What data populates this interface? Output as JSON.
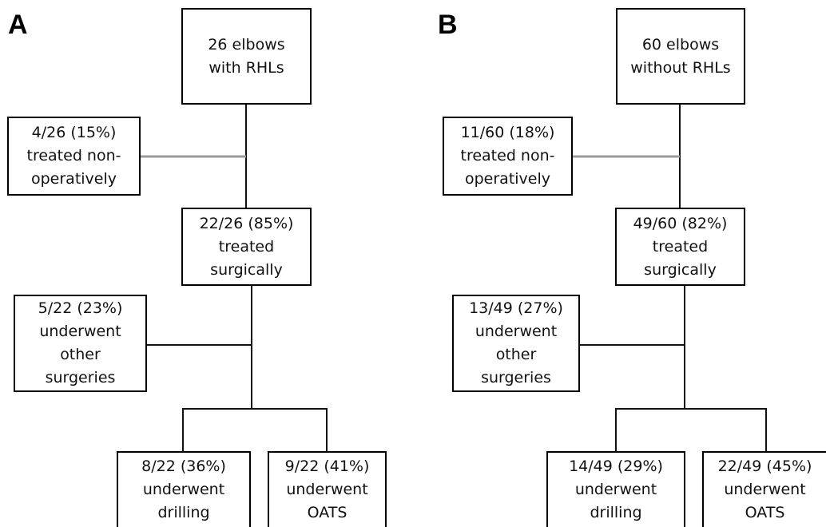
{
  "panels": [
    {
      "label": "A",
      "start": [
        "26 elbows",
        "with RHLs"
      ],
      "nonoperative": [
        "4/26 (15%)",
        "treated non-",
        "operatively"
      ],
      "surgical": [
        "22/26 (85%)",
        "treated",
        "surgically"
      ],
      "other": [
        "5/22 (23%)",
        "underwent",
        "other",
        "surgeries"
      ],
      "drilling": [
        "8/22 (36%)",
        "underwent",
        "drilling"
      ],
      "oats": [
        "9/22 (41%)",
        "underwent",
        "OATS"
      ]
    },
    {
      "label": "B",
      "start": [
        "60 elbows",
        "without RHLs"
      ],
      "nonoperative": [
        "11/60 (18%)",
        "treated non-",
        "operatively"
      ],
      "surgical": [
        "49/60 (82%)",
        "treated",
        "surgically"
      ],
      "other": [
        "13/49 (27%)",
        "underwent",
        "other",
        "surgeries"
      ],
      "drilling": [
        "14/49 (29%)",
        "underwent",
        "drilling"
      ],
      "oats": [
        "22/49 (45%)",
        "underwent",
        "OATS"
      ]
    }
  ]
}
